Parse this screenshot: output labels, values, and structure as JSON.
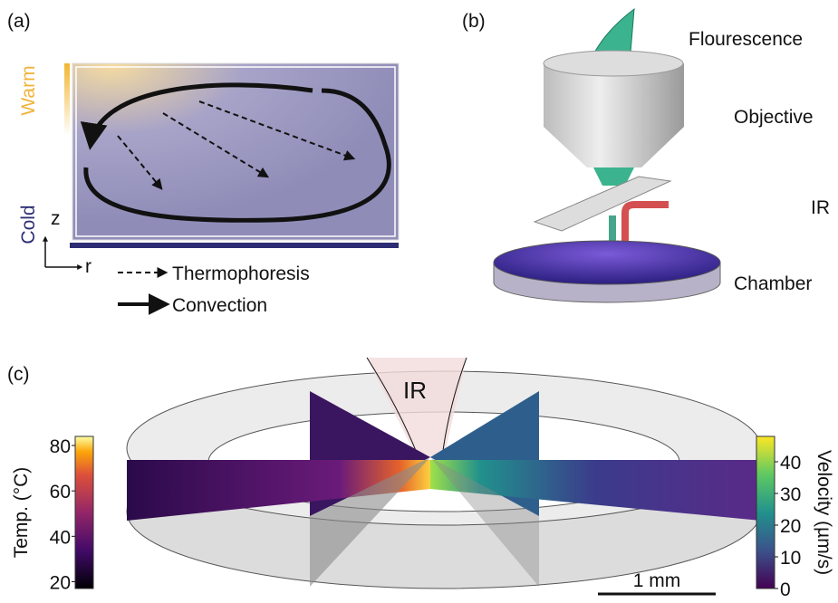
{
  "panel_a": {
    "label": "(a)",
    "warm": "Warm",
    "cold": "Cold",
    "axis_z": "z",
    "axis_r": "r",
    "legend": [
      "Thermophoresis",
      "Convection"
    ]
  },
  "panel_b": {
    "label": "(b)",
    "parts": [
      "Flourescence",
      "Objective",
      "IR",
      "Chamber"
    ]
  },
  "panel_c": {
    "label": "(c)",
    "ir": "IR",
    "scale_bar": "1 mm",
    "temperature_bar": {
      "title": "Temp. (°C)",
      "ticks": [
        80,
        60,
        40,
        20
      ]
    },
    "velocity_bar": {
      "title": "Velocity (µm/s)",
      "ticks": [
        40,
        30,
        20,
        10,
        0
      ]
    }
  }
}
